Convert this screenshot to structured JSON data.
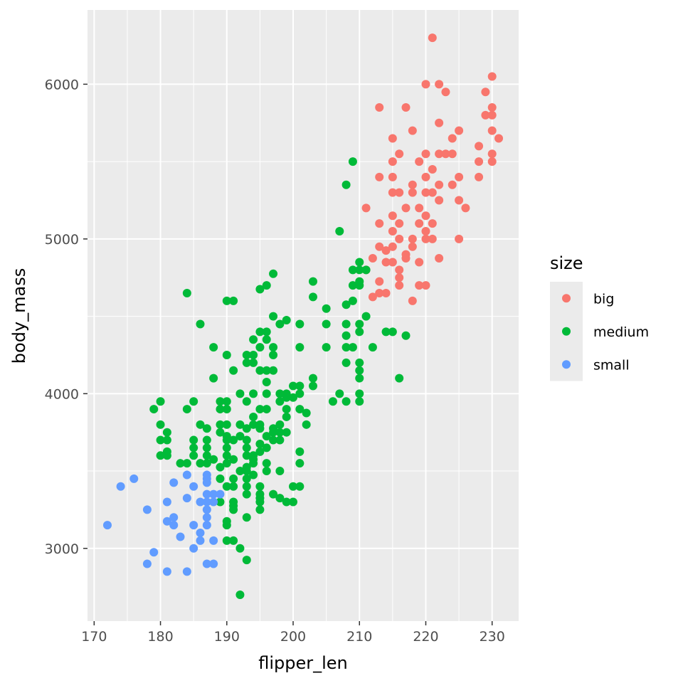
{
  "chart_data": {
    "type": "scatter",
    "xlabel": "flipper_len",
    "ylabel": "body_mass",
    "xlim": [
      169,
      234
    ],
    "ylim": [
      2530,
      6480
    ],
    "x_ticks": [
      170,
      180,
      190,
      200,
      210,
      220,
      230
    ],
    "y_ticks": [
      3000,
      4000,
      5000,
      6000
    ],
    "grid": true,
    "panel_background": "#ebebeb",
    "legend": {
      "title": "size",
      "placement": "right",
      "entries": [
        {
          "label": "big",
          "color": "#f8766d"
        },
        {
          "label": "medium",
          "color": "#00ba38"
        },
        {
          "label": "small",
          "color": "#619cff"
        }
      ]
    },
    "series": [
      {
        "name": "big",
        "color": "#f8766d",
        "points": [
          [
            221,
            6300
          ],
          [
            220,
            6000
          ],
          [
            222,
            6000
          ],
          [
            230,
            6050
          ],
          [
            223,
            5950
          ],
          [
            229,
            5950
          ],
          [
            213,
            5850
          ],
          [
            217,
            5850
          ],
          [
            230,
            5850
          ],
          [
            229,
            5800
          ],
          [
            230,
            5800
          ],
          [
            222,
            5750
          ],
          [
            218,
            5700
          ],
          [
            225,
            5700
          ],
          [
            230,
            5700
          ],
          [
            231,
            5650
          ],
          [
            215,
            5650
          ],
          [
            224,
            5650
          ],
          [
            228,
            5600
          ],
          [
            216,
            5550
          ],
          [
            220,
            5550
          ],
          [
            222,
            5550
          ],
          [
            223,
            5550
          ],
          [
            224,
            5550
          ],
          [
            230,
            5550
          ],
          [
            215,
            5500
          ],
          [
            219,
            5500
          ],
          [
            228,
            5500
          ],
          [
            230,
            5500
          ],
          [
            221,
            5450
          ],
          [
            213,
            5400
          ],
          [
            215,
            5400
          ],
          [
            220,
            5400
          ],
          [
            225,
            5400
          ],
          [
            228,
            5400
          ],
          [
            218,
            5350
          ],
          [
            222,
            5350
          ],
          [
            224,
            5350
          ],
          [
            216,
            5300
          ],
          [
            218,
            5300
          ],
          [
            220,
            5300
          ],
          [
            221,
            5300
          ],
          [
            215,
            5300
          ],
          [
            222,
            5250
          ],
          [
            225,
            5250
          ],
          [
            217,
            5200
          ],
          [
            211,
            5200
          ],
          [
            226,
            5200
          ],
          [
            219,
            5200
          ],
          [
            220,
            5150
          ],
          [
            215,
            5150
          ],
          [
            213,
            5100
          ],
          [
            216,
            5100
          ],
          [
            219,
            5100
          ],
          [
            221,
            5100
          ],
          [
            220,
            5050
          ],
          [
            215,
            5050
          ],
          [
            218,
            5000
          ],
          [
            220,
            5000
          ],
          [
            221,
            5000
          ],
          [
            225,
            5000
          ],
          [
            216,
            5000
          ],
          [
            215,
            4950
          ],
          [
            213,
            4950
          ],
          [
            218,
            4950
          ],
          [
            214,
            4925
          ],
          [
            217,
            4900
          ],
          [
            217,
            4875
          ],
          [
            222,
            4875
          ],
          [
            212,
            4875
          ],
          [
            214,
            4850
          ],
          [
            219,
            4850
          ],
          [
            215,
            4850
          ],
          [
            216,
            4800
          ],
          [
            211,
            4800
          ],
          [
            216,
            4750
          ],
          [
            213,
            4725
          ],
          [
            216,
            4700
          ],
          [
            219,
            4700
          ],
          [
            220,
            4700
          ],
          [
            213,
            4650
          ],
          [
            214,
            4650
          ],
          [
            212,
            4625
          ],
          [
            218,
            4600
          ]
        ]
      },
      {
        "name": "medium",
        "color": "#00ba38",
        "points": [
          [
            209,
            5500
          ],
          [
            208,
            5350
          ],
          [
            207,
            5050
          ],
          [
            210,
            4850
          ],
          [
            209,
            4800
          ],
          [
            210,
            4800
          ],
          [
            211,
            4800
          ],
          [
            197,
            4775
          ],
          [
            203,
            4725
          ],
          [
            210,
            4725
          ],
          [
            196,
            4700
          ],
          [
            195,
            4675
          ],
          [
            209,
            4700
          ],
          [
            210,
            4700
          ],
          [
            184,
            4650
          ],
          [
            203,
            4625
          ],
          [
            209,
            4600
          ],
          [
            190,
            4600
          ],
          [
            191,
            4600
          ],
          [
            208,
            4575
          ],
          [
            205,
            4550
          ],
          [
            197,
            4500
          ],
          [
            211,
            4500
          ],
          [
            199,
            4475
          ],
          [
            205,
            4450
          ],
          [
            186,
            4450
          ],
          [
            201,
            4450
          ],
          [
            198,
            4450
          ],
          [
            208,
            4450
          ],
          [
            210,
            4450
          ],
          [
            195,
            4400
          ],
          [
            196,
            4400
          ],
          [
            215,
            4400
          ],
          [
            214,
            4400
          ],
          [
            210,
            4400
          ],
          [
            217,
            4375
          ],
          [
            208,
            4375
          ],
          [
            194,
            4350
          ],
          [
            196,
            4350
          ],
          [
            208,
            4300
          ],
          [
            195,
            4300
          ],
          [
            197,
            4300
          ],
          [
            188,
            4300
          ],
          [
            201,
            4300
          ],
          [
            205,
            4300
          ],
          [
            212,
            4300
          ],
          [
            209,
            4300
          ],
          [
            193,
            4250
          ],
          [
            194,
            4250
          ],
          [
            190,
            4250
          ],
          [
            197,
            4250
          ],
          [
            193,
            4200
          ],
          [
            194,
            4200
          ],
          [
            208,
            4200
          ],
          [
            210,
            4200
          ],
          [
            191,
            4150
          ],
          [
            195,
            4150
          ],
          [
            196,
            4150
          ],
          [
            197,
            4150
          ],
          [
            210,
            4150
          ],
          [
            188,
            4100
          ],
          [
            216,
            4100
          ],
          [
            203,
            4100
          ],
          [
            210,
            4100
          ],
          [
            196,
            4075
          ],
          [
            201,
            4050
          ],
          [
            200,
            4050
          ],
          [
            203,
            4050
          ],
          [
            192,
            4000
          ],
          [
            194,
            4000
          ],
          [
            199,
            4000
          ],
          [
            207,
            4000
          ],
          [
            210,
            4000
          ],
          [
            198,
            4000
          ],
          [
            201,
            4000
          ],
          [
            196,
            4000
          ],
          [
            199,
            3975
          ],
          [
            200,
            3975
          ],
          [
            206,
            3950
          ],
          [
            208,
            3950
          ],
          [
            210,
            3950
          ],
          [
            185,
            3950
          ],
          [
            180,
            3950
          ],
          [
            190,
            3950
          ],
          [
            189,
            3950
          ],
          [
            198,
            3950
          ],
          [
            193,
            3950
          ],
          [
            195,
            3900
          ],
          [
            196,
            3900
          ],
          [
            190,
            3900
          ],
          [
            184,
            3900
          ],
          [
            179,
            3900
          ],
          [
            201,
            3900
          ],
          [
            189,
            3900
          ],
          [
            199,
            3900
          ],
          [
            202,
            3875
          ],
          [
            194,
            3850
          ],
          [
            199,
            3850
          ],
          [
            189,
            3800
          ],
          [
            190,
            3800
          ],
          [
            192,
            3800
          ],
          [
            194,
            3800
          ],
          [
            195,
            3800
          ],
          [
            198,
            3800
          ],
          [
            202,
            3800
          ],
          [
            186,
            3800
          ],
          [
            180,
            3800
          ],
          [
            195,
            3775
          ],
          [
            197,
            3775
          ],
          [
            187,
            3775
          ],
          [
            193,
            3775
          ],
          [
            197,
            3750
          ],
          [
            181,
            3750
          ],
          [
            198,
            3750
          ],
          [
            189,
            3750
          ],
          [
            199,
            3750
          ],
          [
            190,
            3725
          ],
          [
            192,
            3725
          ],
          [
            196,
            3725
          ],
          [
            180,
            3700
          ],
          [
            181,
            3700
          ],
          [
            185,
            3700
          ],
          [
            187,
            3700
          ],
          [
            190,
            3700
          ],
          [
            191,
            3700
          ],
          [
            193,
            3700
          ],
          [
            197,
            3700
          ],
          [
            198,
            3700
          ],
          [
            195,
            3675
          ],
          [
            193,
            3650
          ],
          [
            196,
            3650
          ],
          [
            187,
            3650
          ],
          [
            185,
            3650
          ],
          [
            190,
            3650
          ],
          [
            181,
            3625
          ],
          [
            195,
            3625
          ],
          [
            201,
            3625
          ],
          [
            180,
            3600
          ],
          [
            185,
            3600
          ],
          [
            190,
            3600
          ],
          [
            193,
            3600
          ],
          [
            194,
            3600
          ],
          [
            181,
            3600
          ],
          [
            187,
            3600
          ],
          [
            191,
            3575
          ],
          [
            194,
            3575
          ],
          [
            188,
            3575
          ],
          [
            201,
            3550
          ],
          [
            183,
            3550
          ],
          [
            184,
            3550
          ],
          [
            186,
            3550
          ],
          [
            190,
            3550
          ],
          [
            194,
            3550
          ],
          [
            196,
            3550
          ],
          [
            187,
            3550
          ],
          [
            189,
            3525
          ],
          [
            193,
            3525
          ],
          [
            192,
            3500
          ],
          [
            193,
            3500
          ],
          [
            196,
            3500
          ],
          [
            198,
            3500
          ],
          [
            194,
            3475
          ],
          [
            193,
            3450
          ],
          [
            191,
            3450
          ],
          [
            189,
            3450
          ],
          [
            200,
            3400
          ],
          [
            195,
            3400
          ],
          [
            201,
            3400
          ],
          [
            190,
            3400
          ],
          [
            191,
            3400
          ],
          [
            193,
            3400
          ],
          [
            195,
            3350
          ],
          [
            197,
            3350
          ],
          [
            193,
            3350
          ],
          [
            198,
            3325
          ],
          [
            195,
            3325
          ],
          [
            195,
            3300
          ],
          [
            199,
            3300
          ],
          [
            200,
            3300
          ],
          [
            191,
            3300
          ],
          [
            189,
            3300
          ],
          [
            191,
            3275
          ],
          [
            195,
            3250
          ],
          [
            191,
            3250
          ],
          [
            193,
            3200
          ],
          [
            190,
            3175
          ],
          [
            190,
            3150
          ],
          [
            191,
            3050
          ],
          [
            190,
            3050
          ],
          [
            192,
            3000
          ],
          [
            193,
            2925
          ],
          [
            192,
            2700
          ]
        ]
      },
      {
        "name": "small",
        "color": "#619cff",
        "points": [
          [
            172,
            3150
          ],
          [
            174,
            3400
          ],
          [
            176,
            3450
          ],
          [
            178,
            3250
          ],
          [
            178,
            2900
          ],
          [
            179,
            2975
          ],
          [
            181,
            2850
          ],
          [
            181,
            3175
          ],
          [
            181,
            3300
          ],
          [
            182,
            3425
          ],
          [
            182,
            3150
          ],
          [
            182,
            3200
          ],
          [
            183,
            3075
          ],
          [
            184,
            3475
          ],
          [
            184,
            3325
          ],
          [
            184,
            2850
          ],
          [
            185,
            3400
          ],
          [
            185,
            3150
          ],
          [
            185,
            3000
          ],
          [
            186,
            3050
          ],
          [
            186,
            3300
          ],
          [
            186,
            3100
          ],
          [
            187,
            3450
          ],
          [
            187,
            3475
          ],
          [
            187,
            3425
          ],
          [
            187,
            3350
          ],
          [
            187,
            3300
          ],
          [
            187,
            3250
          ],
          [
            187,
            3200
          ],
          [
            187,
            3150
          ],
          [
            187,
            2900
          ],
          [
            188,
            3350
          ],
          [
            188,
            3300
          ],
          [
            188,
            3050
          ],
          [
            188,
            2900
          ],
          [
            189,
            3350
          ]
        ]
      }
    ]
  }
}
